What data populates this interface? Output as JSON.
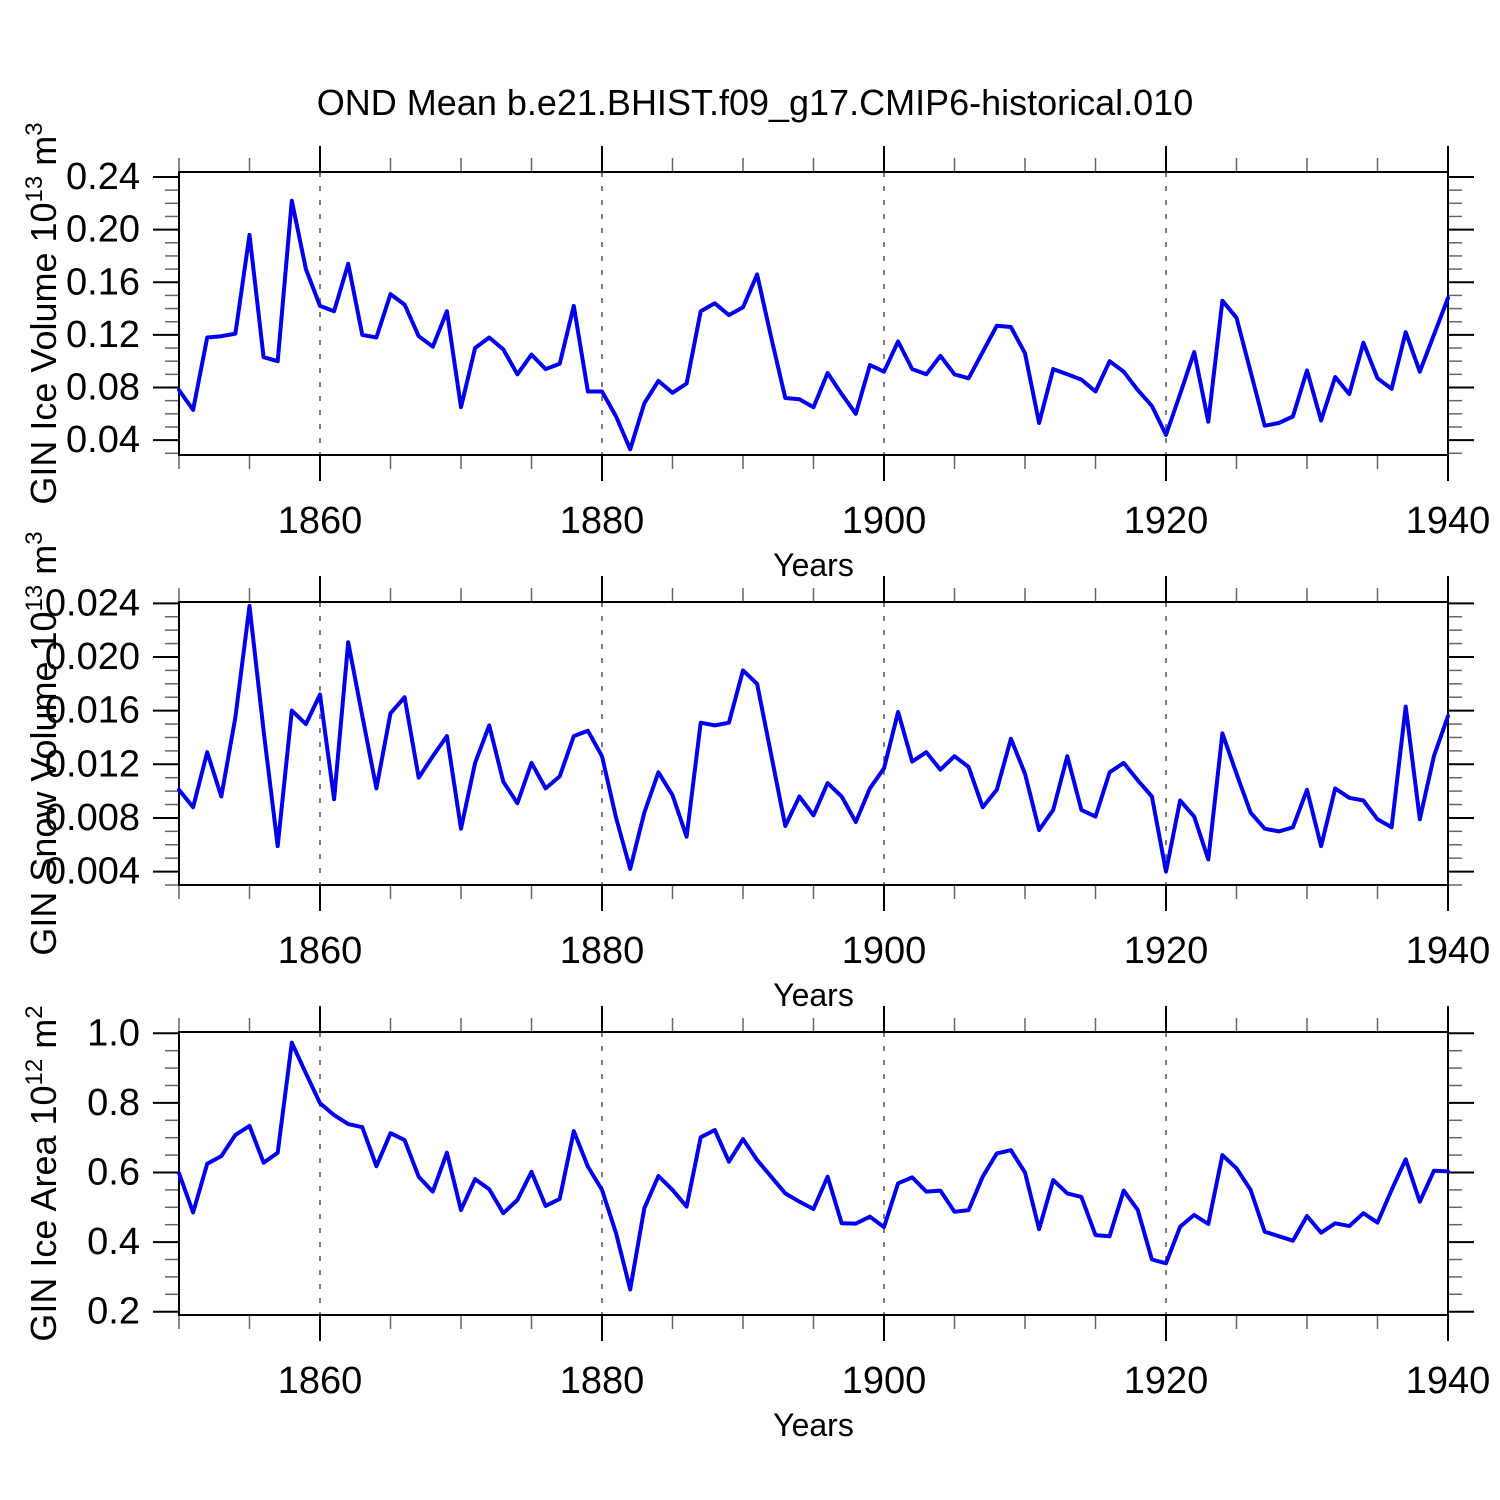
{
  "title": "OND Mean b.e21.BHIST.f09_g17.CMIP6-historical.010",
  "line_color": "#0000ee",
  "grid_color": "#7f7f7f",
  "axis_color": "#000000",
  "minor_tick_color": "#666666",
  "chart_data": [
    {
      "type": "line",
      "series_name": "GIN Ice Volume",
      "xlabel": "Years",
      "ylabel_parts": [
        [
          "GIN Ice Volume 10",
          0
        ],
        [
          "13",
          1
        ],
        [
          " m",
          0
        ],
        [
          "3",
          1
        ]
      ],
      "xlim": [
        1850,
        1940
      ],
      "x_start": 1850,
      "x_step": 1,
      "xtick_values": [
        1860,
        1880,
        1900,
        1920,
        1940
      ],
      "xtick_labels": [
        "1860",
        "1880",
        "1900",
        "1920",
        "1940"
      ],
      "xtick_minor_step": 5,
      "gridlines_x": [
        1860,
        1880,
        1900,
        1920
      ],
      "grid": "vertical-dashed",
      "legend": "none",
      "ylim": [
        0.0287,
        0.2438
      ],
      "ytick_values": [
        0.04,
        0.08,
        0.12,
        0.16,
        0.2,
        0.24
      ],
      "ytick_labels": [
        "0.04",
        "0.08",
        "0.12",
        "0.16",
        "0.20",
        "0.24"
      ],
      "ytick_minor_step": 0.01,
      "values": [
        0.078,
        0.063,
        0.118,
        0.119,
        0.121,
        0.196,
        0.103,
        0.1,
        0.222,
        0.17,
        0.142,
        0.138,
        0.174,
        0.12,
        0.118,
        0.151,
        0.143,
        0.119,
        0.111,
        0.138,
        0.065,
        0.11,
        0.118,
        0.109,
        0.09,
        0.105,
        0.094,
        0.098,
        0.142,
        0.077,
        0.077,
        0.058,
        0.033,
        0.068,
        0.085,
        0.076,
        0.083,
        0.138,
        0.144,
        0.135,
        0.141,
        0.166,
        0.118,
        0.072,
        0.071,
        0.065,
        0.091,
        0.075,
        0.06,
        0.097,
        0.092,
        0.115,
        0.094,
        0.09,
        0.104,
        0.09,
        0.087,
        0.107,
        0.127,
        0.126,
        0.106,
        0.053,
        0.094,
        0.09,
        0.086,
        0.077,
        0.1,
        0.092,
        0.078,
        0.066,
        0.044,
        0.075,
        0.107,
        0.054,
        0.146,
        0.133,
        0.092,
        0.051,
        0.053,
        0.058,
        0.093,
        0.055,
        0.088,
        0.075,
        0.114,
        0.087,
        0.079,
        0.122,
        0.092,
        0.12,
        0.148
      ]
    },
    {
      "type": "line",
      "series_name": "GIN Snow Volume",
      "xlabel": "Years",
      "ylabel_parts": [
        [
          "GIN Snow Volume 10",
          0
        ],
        [
          "13",
          1
        ],
        [
          " m",
          0
        ],
        [
          "3",
          1
        ]
      ],
      "xlim": [
        1850,
        1940
      ],
      "x_start": 1850,
      "x_step": 1,
      "xtick_values": [
        1860,
        1880,
        1900,
        1920,
        1940
      ],
      "xtick_labels": [
        "1860",
        "1880",
        "1900",
        "1920",
        "1940"
      ],
      "xtick_minor_step": 5,
      "gridlines_x": [
        1860,
        1880,
        1900,
        1920
      ],
      "grid": "vertical-dashed",
      "legend": "none",
      "ylim": [
        0.003,
        0.0241
      ],
      "ytick_values": [
        0.004,
        0.008,
        0.012,
        0.016,
        0.02,
        0.024
      ],
      "ytick_labels": [
        "0.004",
        "0.008",
        "0.012",
        "0.016",
        "0.020",
        "0.024"
      ],
      "ytick_minor_step": 0.001,
      "values": [
        0.0101,
        0.0088,
        0.0129,
        0.0096,
        0.0155,
        0.0238,
        0.0145,
        0.0059,
        0.016,
        0.015,
        0.0172,
        0.0094,
        0.0211,
        0.0156,
        0.0102,
        0.0158,
        0.017,
        0.011,
        0.0126,
        0.0141,
        0.0072,
        0.0121,
        0.0149,
        0.0107,
        0.0091,
        0.0121,
        0.0102,
        0.0111,
        0.0141,
        0.0145,
        0.0126,
        0.008,
        0.0042,
        0.0084,
        0.0114,
        0.0097,
        0.0066,
        0.0151,
        0.0149,
        0.0151,
        0.019,
        0.018,
        0.0127,
        0.0074,
        0.0096,
        0.0082,
        0.0106,
        0.0096,
        0.0077,
        0.0102,
        0.0117,
        0.0159,
        0.0122,
        0.0129,
        0.0116,
        0.0126,
        0.0118,
        0.0088,
        0.0101,
        0.0139,
        0.0113,
        0.0071,
        0.0086,
        0.0126,
        0.0086,
        0.0081,
        0.0114,
        0.0121,
        0.0108,
        0.0096,
        0.004,
        0.0093,
        0.0081,
        0.0049,
        0.0143,
        0.0113,
        0.0084,
        0.0072,
        0.007,
        0.0073,
        0.0101,
        0.0059,
        0.0102,
        0.0095,
        0.0093,
        0.0079,
        0.0073,
        0.0163,
        0.0079,
        0.0126,
        0.0156
      ]
    },
    {
      "type": "line",
      "series_name": "GIN Ice Area",
      "xlabel": "Years",
      "ylabel_parts": [
        [
          "GIN Ice Area 10",
          0
        ],
        [
          "12",
          1
        ],
        [
          " m",
          0
        ],
        [
          "2",
          1
        ]
      ],
      "xlim": [
        1850,
        1940
      ],
      "x_start": 1850,
      "x_step": 1,
      "xtick_values": [
        1860,
        1880,
        1900,
        1920,
        1940
      ],
      "xtick_labels": [
        "1860",
        "1880",
        "1900",
        "1920",
        "1940"
      ],
      "xtick_minor_step": 5,
      "gridlines_x": [
        1860,
        1880,
        1900,
        1920
      ],
      "grid": "vertical-dashed",
      "legend": "none",
      "ylim": [
        0.1905,
        1.0037
      ],
      "ytick_values": [
        0.2,
        0.4,
        0.6,
        0.8,
        1.0
      ],
      "ytick_labels": [
        "0.2",
        "0.4",
        "0.6",
        "0.8",
        "1.0"
      ],
      "ytick_minor_step": 0.05,
      "values": [
        0.598,
        0.485,
        0.625,
        0.647,
        0.708,
        0.734,
        0.628,
        0.657,
        0.973,
        0.885,
        0.799,
        0.765,
        0.739,
        0.73,
        0.618,
        0.713,
        0.693,
        0.588,
        0.545,
        0.657,
        0.492,
        0.581,
        0.552,
        0.483,
        0.521,
        0.602,
        0.504,
        0.524,
        0.719,
        0.617,
        0.55,
        0.425,
        0.264,
        0.497,
        0.59,
        0.55,
        0.502,
        0.701,
        0.722,
        0.631,
        0.696,
        0.636,
        0.588,
        0.54,
        0.516,
        0.495,
        0.588,
        0.454,
        0.453,
        0.473,
        0.443,
        0.569,
        0.586,
        0.545,
        0.548,
        0.487,
        0.492,
        0.588,
        0.655,
        0.664,
        0.6,
        0.437,
        0.578,
        0.54,
        0.53,
        0.42,
        0.417,
        0.548,
        0.492,
        0.35,
        0.339,
        0.444,
        0.478,
        0.452,
        0.65,
        0.612,
        0.55,
        0.43,
        0.417,
        0.404,
        0.475,
        0.427,
        0.454,
        0.446,
        0.483,
        0.456,
        0.55,
        0.638,
        0.516,
        0.605,
        0.603
      ]
    }
  ]
}
